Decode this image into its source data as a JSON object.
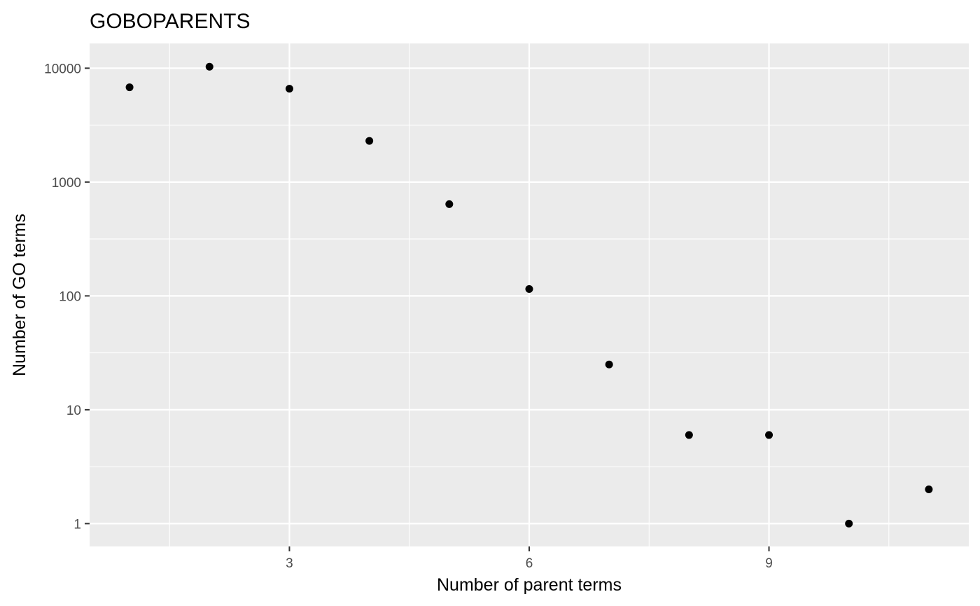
{
  "chart_data": {
    "type": "scatter",
    "title": "GOBOPARENTS",
    "xlabel": "Number of parent terms",
    "ylabel": "Number of GO terms",
    "x": [
      1,
      2,
      3,
      4,
      5,
      6,
      7,
      8,
      9,
      10,
      11
    ],
    "y": [
      6800,
      10300,
      6600,
      2300,
      640,
      115,
      25,
      6,
      6,
      1,
      2
    ],
    "x_ticks": [
      3,
      6,
      9
    ],
    "x_tick_labels": [
      "3",
      "6",
      "9"
    ],
    "y_scale": "log10",
    "y_ticks": [
      1,
      10,
      100,
      1000,
      10000
    ],
    "y_tick_labels": [
      "1",
      "10",
      "100",
      "1000",
      "10000"
    ],
    "xlim": [
      0.5,
      11.5
    ],
    "ylim": [
      0.63,
      16500
    ],
    "grid": true,
    "legend": "none",
    "colors": {
      "panel_background": "#ebebeb",
      "grid": "#ffffff",
      "point": "#000000",
      "tick_label": "#4d4d4d"
    }
  }
}
